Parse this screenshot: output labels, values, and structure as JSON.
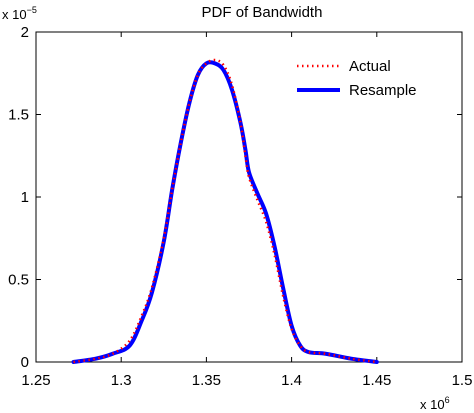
{
  "chart_data": {
    "type": "line",
    "title": "PDF of Bandwidth",
    "xlabel": "",
    "ylabel": "",
    "x_multiplier": "x 10",
    "x_multiplier_exp": "6",
    "y_multiplier": "x 10",
    "y_multiplier_exp": "−5",
    "xlim": [
      1.25,
      1.5
    ],
    "ylim": [
      0,
      2
    ],
    "x_ticks": [
      1.25,
      1.3,
      1.35,
      1.4,
      1.45,
      1.5
    ],
    "x_tick_labels": [
      "1.25",
      "1.3",
      "1.35",
      "1.4",
      "1.45",
      "1.5"
    ],
    "y_ticks": [
      0,
      0.5,
      1,
      1.5,
      2
    ],
    "y_tick_labels": [
      "0",
      "0.5",
      "1",
      "1.5",
      "2"
    ],
    "grid": false,
    "legend_position": "top-right",
    "colors": {
      "actual": "#ff0000",
      "resample": "#0000ff"
    },
    "series": [
      {
        "name": "Actual",
        "style": "dotted",
        "x": [
          1.272,
          1.285,
          1.295,
          1.305,
          1.312,
          1.318,
          1.325,
          1.33,
          1.335,
          1.34,
          1.345,
          1.35,
          1.355,
          1.36,
          1.365,
          1.37,
          1.373,
          1.375,
          1.38,
          1.385,
          1.39,
          1.395,
          1.4,
          1.405,
          1.41,
          1.42,
          1.435,
          1.45
        ],
        "y": [
          0.0,
          0.02,
          0.05,
          0.13,
          0.28,
          0.45,
          0.75,
          1.05,
          1.33,
          1.57,
          1.74,
          1.81,
          1.83,
          1.8,
          1.68,
          1.45,
          1.24,
          1.12,
          0.98,
          0.85,
          0.65,
          0.4,
          0.2,
          0.1,
          0.06,
          0.05,
          0.02,
          0.0
        ]
      },
      {
        "name": "Resample",
        "style": "solid",
        "x": [
          1.272,
          1.285,
          1.295,
          1.305,
          1.312,
          1.318,
          1.325,
          1.33,
          1.335,
          1.34,
          1.345,
          1.35,
          1.355,
          1.36,
          1.365,
          1.37,
          1.373,
          1.375,
          1.38,
          1.385,
          1.39,
          1.395,
          1.4,
          1.405,
          1.41,
          1.42,
          1.435,
          1.45
        ],
        "y": [
          0.0,
          0.02,
          0.05,
          0.1,
          0.25,
          0.42,
          0.73,
          1.05,
          1.33,
          1.57,
          1.74,
          1.81,
          1.81,
          1.77,
          1.65,
          1.45,
          1.28,
          1.15,
          1.02,
          0.9,
          0.7,
          0.45,
          0.22,
          0.1,
          0.06,
          0.05,
          0.02,
          0.0
        ]
      }
    ]
  }
}
